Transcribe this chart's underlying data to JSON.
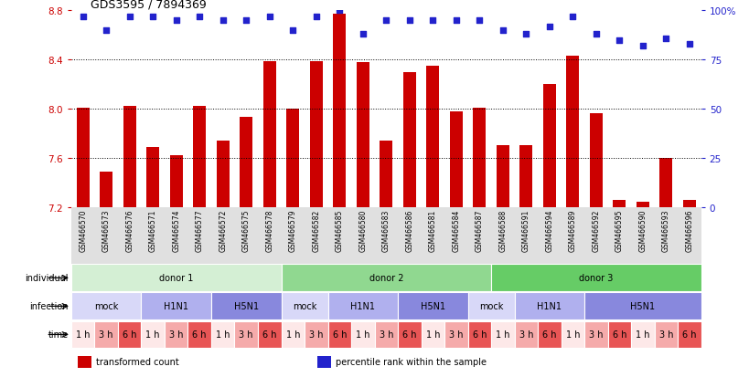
{
  "title": "GDS3595 / 7894369",
  "samples": [
    "GSM466570",
    "GSM466573",
    "GSM466576",
    "GSM466571",
    "GSM466574",
    "GSM466577",
    "GSM466572",
    "GSM466575",
    "GSM466578",
    "GSM466579",
    "GSM466582",
    "GSM466585",
    "GSM466580",
    "GSM466583",
    "GSM466586",
    "GSM466581",
    "GSM466584",
    "GSM466587",
    "GSM466588",
    "GSM466591",
    "GSM466594",
    "GSM466589",
    "GSM466592",
    "GSM466595",
    "GSM466590",
    "GSM466593",
    "GSM466596"
  ],
  "transformed_count": [
    8.01,
    7.49,
    8.02,
    7.69,
    7.62,
    8.02,
    7.74,
    7.93,
    8.39,
    8.0,
    8.39,
    8.77,
    8.38,
    7.74,
    8.3,
    8.35,
    7.98,
    8.01,
    7.7,
    7.7,
    8.2,
    8.43,
    7.96,
    7.26,
    7.24,
    7.6,
    7.26
  ],
  "percentile_rank": [
    97,
    90,
    97,
    97,
    95,
    97,
    95,
    95,
    97,
    90,
    97,
    100,
    88,
    95,
    95,
    95,
    95,
    95,
    90,
    88,
    92,
    97,
    88,
    85,
    82,
    86,
    83
  ],
  "ylim": [
    7.2,
    8.8
  ],
  "yticks": [
    7.2,
    7.6,
    8.0,
    8.4,
    8.8
  ],
  "right_ylim": [
    0,
    100
  ],
  "right_yticks": [
    0,
    25,
    50,
    75,
    100
  ],
  "right_yticklabels": [
    "0",
    "25",
    "50",
    "75",
    "100%"
  ],
  "bar_color": "#cc0000",
  "dot_color": "#2222cc",
  "grid_color": "#000000",
  "individual_groups": [
    {
      "text": "donor 1",
      "start": 0,
      "end": 9,
      "color": "#d4efd4"
    },
    {
      "text": "donor 2",
      "start": 9,
      "end": 18,
      "color": "#90d890"
    },
    {
      "text": "donor 3",
      "start": 18,
      "end": 27,
      "color": "#66cc66"
    }
  ],
  "infection_groups": [
    {
      "text": "mock",
      "start": 0,
      "end": 3,
      "color": "#d8d8f8"
    },
    {
      "text": "H1N1",
      "start": 3,
      "end": 6,
      "color": "#b0b0ee"
    },
    {
      "text": "H5N1",
      "start": 6,
      "end": 9,
      "color": "#8888dd"
    },
    {
      "text": "mock",
      "start": 9,
      "end": 11,
      "color": "#d8d8f8"
    },
    {
      "text": "H1N1",
      "start": 11,
      "end": 14,
      "color": "#b0b0ee"
    },
    {
      "text": "H5N1",
      "start": 14,
      "end": 17,
      "color": "#8888dd"
    },
    {
      "text": "mock",
      "start": 17,
      "end": 19,
      "color": "#d8d8f8"
    },
    {
      "text": "H1N1",
      "start": 19,
      "end": 22,
      "color": "#b0b0ee"
    },
    {
      "text": "H5N1",
      "start": 22,
      "end": 27,
      "color": "#8888dd"
    }
  ],
  "time_sublabels": [
    "1 h",
    "3 h",
    "6 h",
    "1 h",
    "3 h",
    "6 h",
    "1 h",
    "3 h",
    "6 h",
    "1 h",
    "3 h",
    "6 h",
    "1 h",
    "3 h",
    "6 h",
    "1 h",
    "3 h",
    "6 h",
    "1 h",
    "3 h",
    "6 h",
    "1 h",
    "3 h",
    "6 h",
    "1 h",
    "3 h",
    "6 h"
  ],
  "time_colors": [
    "#fde8e8",
    "#f5aaaa",
    "#e85555",
    "#fde8e8",
    "#f5aaaa",
    "#e85555",
    "#fde8e8",
    "#f5aaaa",
    "#e85555",
    "#fde8e8",
    "#f5aaaa",
    "#e85555",
    "#fde8e8",
    "#f5aaaa",
    "#e85555",
    "#fde8e8",
    "#f5aaaa",
    "#e85555",
    "#fde8e8",
    "#f5aaaa",
    "#e85555",
    "#fde8e8",
    "#f5aaaa",
    "#e85555",
    "#fde8e8",
    "#f5aaaa",
    "#e85555"
  ],
  "legend": [
    {
      "color": "#cc0000",
      "label": "transformed count"
    },
    {
      "color": "#2222cc",
      "label": "percentile rank within the sample"
    }
  ],
  "background_color": "#ffffff",
  "left_tick_color": "#cc0000",
  "right_tick_color": "#2222cc",
  "xtick_bg_color": "#e0e0e0"
}
